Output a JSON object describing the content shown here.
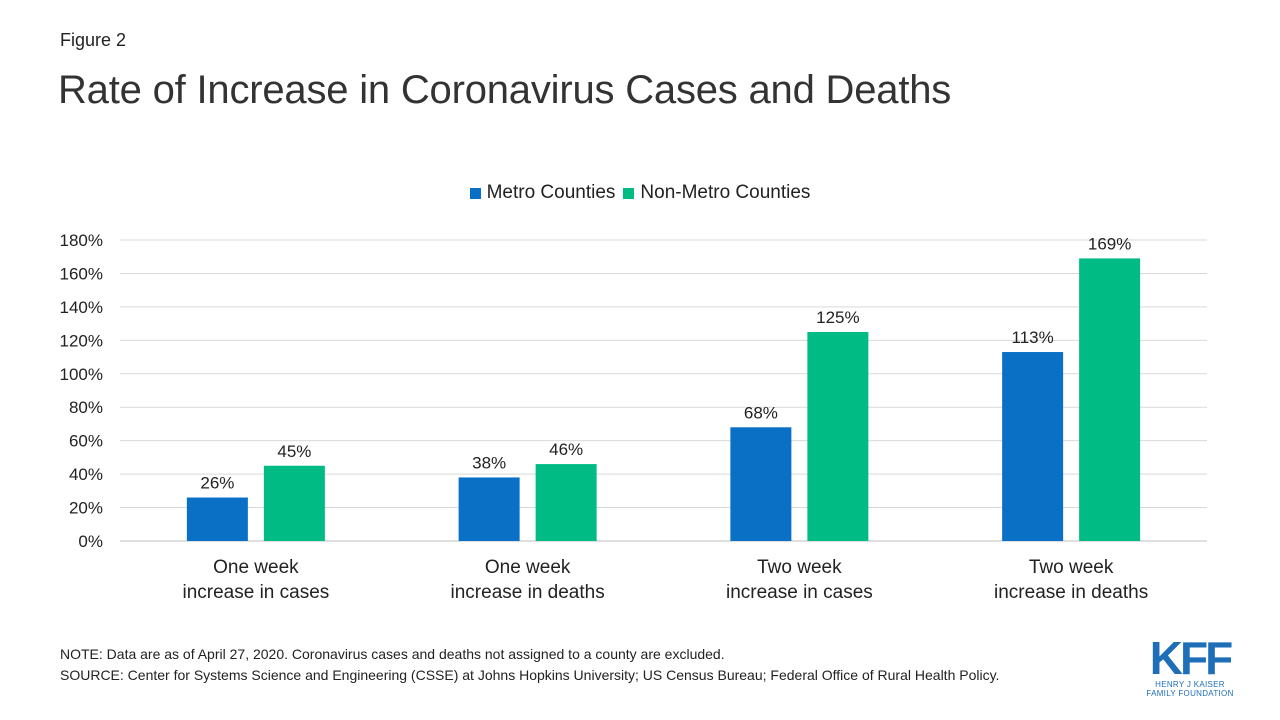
{
  "header": {
    "figure_label": "Figure 2",
    "title": "Rate of Increase in Coronavirus Cases and Deaths"
  },
  "chart_data": {
    "type": "bar",
    "title": "Rate of Increase in Coronavirus Cases and Deaths",
    "categories": [
      [
        "One week",
        "increase in cases"
      ],
      [
        "One week",
        "increase in deaths"
      ],
      [
        "Two week",
        "increase in cases"
      ],
      [
        "Two week",
        "increase in deaths"
      ]
    ],
    "series": [
      {
        "name": "Metro Counties",
        "color": "#0a70c6",
        "values": [
          26,
          38,
          68,
          113
        ],
        "labels": [
          "26%",
          "38%",
          "68%",
          "113%"
        ]
      },
      {
        "name": "Non-Metro Counties",
        "color": "#00bc84",
        "values": [
          45,
          46,
          125,
          169
        ],
        "labels": [
          "45%",
          "46%",
          "125%",
          "169%"
        ]
      }
    ],
    "ylim": [
      0,
      180
    ],
    "yticks": [
      0,
      20,
      40,
      60,
      80,
      100,
      120,
      140,
      160,
      180
    ],
    "ytick_labels": [
      "0%",
      "20%",
      "40%",
      "60%",
      "80%",
      "100%",
      "120%",
      "140%",
      "160%",
      "180%"
    ],
    "grid": true,
    "legend": "top-center",
    "xlabel": "",
    "ylabel": ""
  },
  "footer": {
    "note": "NOTE: Data are as of April 27, 2020. Coronavirus cases and deaths not assigned to a county are excluded.",
    "source": "SOURCE: Center for Systems Science and Engineering (CSSE) at Johns Hopkins University; US Census Bureau; Federal Office of Rural Health Policy."
  },
  "logo": {
    "mark": "KFF",
    "line1": "HENRY J KAISER",
    "line2": "FAMILY FOUNDATION"
  }
}
